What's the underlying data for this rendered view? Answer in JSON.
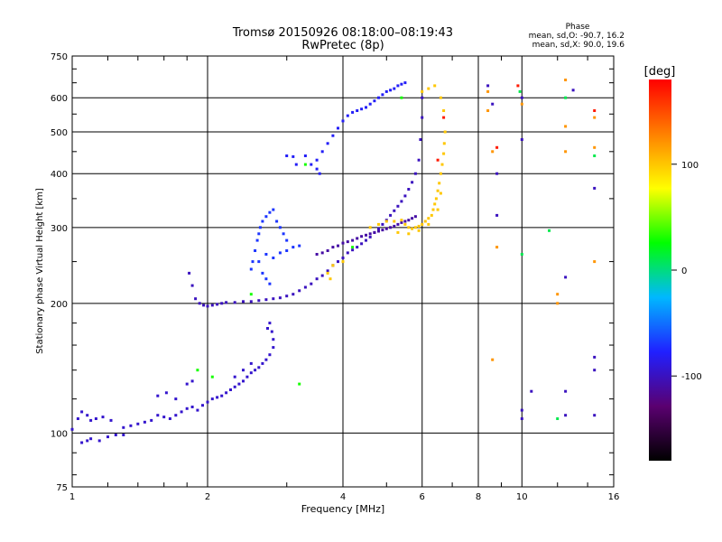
{
  "chart_data": {
    "type": "scatter",
    "title": "Tromsø 20150926 08:18:00–08:19:43",
    "subtitle": "RwPretec (8p)",
    "xlabel": "Frequency [MHz]",
    "ylabel": "Stationary phase Virtual Height [km]",
    "x_scale": "log",
    "y_scale": "log",
    "xlim": [
      1,
      16
    ],
    "ylim": [
      75,
      750
    ],
    "x_ticks": [
      1,
      2,
      4,
      6,
      8,
      10,
      16
    ],
    "y_ticks": [
      75,
      100,
      200,
      300,
      400,
      500,
      600,
      750
    ],
    "grid_x": [
      2,
      4,
      6,
      8,
      10
    ],
    "grid_y": [
      100,
      200,
      300,
      400,
      500,
      600
    ],
    "grid": true,
    "phase_header": "Phase",
    "phase_stats": [
      "mean, sd,O: -90.7, 16.2",
      "mean, sd,X:  90.0, 19.6"
    ],
    "colorbar": {
      "label": "[deg]",
      "ticks": [
        100,
        0,
        -100
      ],
      "range": [
        -180,
        180
      ],
      "colors": [
        "#000000",
        "#5a0070",
        "#2020ff",
        "#00b8ff",
        "#00ff00",
        "#ffff00",
        "#ff8000",
        "#ff0000"
      ]
    },
    "series": [
      {
        "phase": -95,
        "points": [
          [
            1.0,
            102
          ],
          [
            1.03,
            108
          ],
          [
            1.05,
            112
          ],
          [
            1.08,
            110
          ],
          [
            1.1,
            107
          ],
          [
            1.13,
            108
          ],
          [
            1.17,
            109
          ],
          [
            1.22,
            107
          ],
          [
            1.05,
            95
          ],
          [
            1.08,
            96
          ],
          [
            1.1,
            97
          ],
          [
            1.15,
            96
          ],
          [
            1.2,
            98
          ],
          [
            1.25,
            99
          ],
          [
            1.3,
            99
          ],
          [
            1.3,
            103
          ],
          [
            1.35,
            104
          ],
          [
            1.4,
            105
          ],
          [
            1.45,
            106
          ],
          [
            1.5,
            107
          ],
          [
            1.55,
            110
          ],
          [
            1.6,
            109
          ],
          [
            1.65,
            108
          ],
          [
            1.7,
            110
          ],
          [
            1.75,
            112
          ],
          [
            1.8,
            114
          ],
          [
            1.85,
            115
          ],
          [
            1.9,
            113
          ],
          [
            1.95,
            116
          ],
          [
            2.0,
            118
          ],
          [
            2.05,
            120
          ],
          [
            2.1,
            121
          ],
          [
            2.15,
            122
          ],
          [
            2.2,
            124
          ],
          [
            2.25,
            126
          ],
          [
            2.3,
            128
          ],
          [
            2.35,
            130
          ],
          [
            2.4,
            132
          ],
          [
            2.45,
            135
          ],
          [
            2.5,
            138
          ],
          [
            2.55,
            140
          ],
          [
            2.6,
            142
          ],
          [
            2.65,
            145
          ],
          [
            2.7,
            148
          ],
          [
            2.75,
            152
          ],
          [
            2.8,
            158
          ],
          [
            2.8,
            165
          ],
          [
            2.78,
            172
          ],
          [
            2.75,
            180
          ],
          [
            2.72,
            175
          ],
          [
            1.8,
            130
          ],
          [
            1.85,
            132
          ],
          [
            1.55,
            122
          ],
          [
            1.62,
            124
          ],
          [
            1.7,
            120
          ],
          [
            2.3,
            135
          ],
          [
            2.4,
            140
          ],
          [
            2.5,
            145
          ]
        ]
      },
      {
        "phase": -100,
        "points": [
          [
            1.82,
            235
          ],
          [
            1.85,
            220
          ],
          [
            1.88,
            205
          ],
          [
            1.92,
            200
          ],
          [
            1.96,
            198
          ],
          [
            2.0,
            197
          ],
          [
            2.05,
            198
          ],
          [
            2.1,
            199
          ],
          [
            2.15,
            200
          ],
          [
            2.2,
            201
          ],
          [
            2.3,
            201
          ],
          [
            2.4,
            202
          ],
          [
            2.5,
            202
          ],
          [
            2.6,
            203
          ],
          [
            2.7,
            204
          ],
          [
            2.8,
            205
          ],
          [
            2.9,
            206
          ],
          [
            3.0,
            208
          ],
          [
            3.1,
            210
          ],
          [
            3.2,
            214
          ],
          [
            3.3,
            218
          ],
          [
            3.4,
            222
          ],
          [
            3.5,
            228
          ],
          [
            3.6,
            232
          ],
          [
            3.7,
            238
          ],
          [
            3.8,
            245
          ],
          [
            3.9,
            250
          ],
          [
            4.0,
            255
          ],
          [
            4.1,
            262
          ],
          [
            4.2,
            266
          ],
          [
            4.3,
            270
          ],
          [
            4.4,
            275
          ],
          [
            4.5,
            280
          ],
          [
            4.6,
            285
          ],
          [
            4.7,
            292
          ],
          [
            4.8,
            298
          ],
          [
            4.9,
            305
          ],
          [
            5.0,
            312
          ],
          [
            5.1,
            320
          ],
          [
            5.2,
            328
          ],
          [
            5.3,
            336
          ],
          [
            5.4,
            345
          ],
          [
            5.5,
            355
          ],
          [
            5.6,
            368
          ],
          [
            5.7,
            382
          ],
          [
            5.8,
            400
          ],
          [
            5.9,
            430
          ],
          [
            5.95,
            480
          ],
          [
            6.0,
            540
          ],
          [
            6.0,
            600
          ]
        ]
      },
      {
        "phase": -70,
        "points": [
          [
            2.5,
            240
          ],
          [
            2.52,
            250
          ],
          [
            2.55,
            265
          ],
          [
            2.58,
            280
          ],
          [
            2.6,
            290
          ],
          [
            2.62,
            300
          ],
          [
            2.65,
            310
          ],
          [
            2.7,
            318
          ],
          [
            2.75,
            325
          ],
          [
            2.8,
            330
          ],
          [
            2.85,
            310
          ],
          [
            2.9,
            300
          ],
          [
            2.95,
            290
          ],
          [
            3.0,
            280
          ],
          [
            2.7,
            260
          ],
          [
            2.8,
            255
          ],
          [
            2.9,
            262
          ],
          [
            3.0,
            265
          ],
          [
            3.1,
            270
          ],
          [
            3.2,
            272
          ],
          [
            2.6,
            250
          ],
          [
            2.65,
            235
          ],
          [
            2.7,
            228
          ],
          [
            2.75,
            222
          ]
        ]
      },
      {
        "phase": -110,
        "points": [
          [
            3.5,
            260
          ],
          [
            3.6,
            262
          ],
          [
            3.7,
            265
          ],
          [
            3.8,
            270
          ],
          [
            3.9,
            272
          ],
          [
            4.0,
            276
          ],
          [
            4.1,
            278
          ],
          [
            4.2,
            280
          ],
          [
            4.3,
            283
          ],
          [
            4.4,
            286
          ],
          [
            4.5,
            288
          ],
          [
            4.6,
            290
          ],
          [
            4.7,
            292
          ],
          [
            4.8,
            294
          ],
          [
            4.9,
            296
          ],
          [
            5.0,
            298
          ],
          [
            5.1,
            300
          ],
          [
            5.2,
            302
          ],
          [
            5.3,
            305
          ],
          [
            5.4,
            308
          ],
          [
            5.5,
            310
          ],
          [
            5.6,
            312
          ],
          [
            5.7,
            315
          ],
          [
            5.8,
            318
          ]
        ]
      },
      {
        "phase": -80,
        "points": [
          [
            3.3,
            440
          ],
          [
            3.4,
            420
          ],
          [
            3.5,
            430
          ],
          [
            3.6,
            450
          ],
          [
            3.7,
            470
          ],
          [
            3.8,
            490
          ],
          [
            3.9,
            510
          ],
          [
            4.0,
            530
          ],
          [
            4.1,
            545
          ],
          [
            4.2,
            555
          ],
          [
            4.3,
            560
          ],
          [
            4.4,
            565
          ],
          [
            4.5,
            570
          ],
          [
            4.6,
            580
          ],
          [
            4.7,
            590
          ],
          [
            4.8,
            600
          ],
          [
            4.9,
            610
          ],
          [
            5.0,
            620
          ],
          [
            5.1,
            625
          ],
          [
            5.2,
            630
          ],
          [
            5.3,
            640
          ],
          [
            5.4,
            645
          ],
          [
            5.5,
            650
          ],
          [
            3.0,
            440
          ],
          [
            3.1,
            438
          ],
          [
            3.15,
            420
          ],
          [
            3.5,
            410
          ],
          [
            3.55,
            400
          ]
        ]
      },
      {
        "phase": 100,
        "points": [
          [
            4.6,
            300
          ],
          [
            4.8,
            305
          ],
          [
            5.0,
            310
          ],
          [
            5.2,
            310
          ],
          [
            5.4,
            312
          ],
          [
            5.5,
            305
          ],
          [
            5.6,
            300
          ],
          [
            5.7,
            298
          ],
          [
            5.8,
            300
          ],
          [
            5.9,
            302
          ],
          [
            6.0,
            305
          ],
          [
            6.1,
            310
          ],
          [
            6.2,
            315
          ],
          [
            6.3,
            320
          ],
          [
            6.35,
            330
          ],
          [
            6.4,
            340
          ],
          [
            6.45,
            350
          ],
          [
            6.5,
            365
          ],
          [
            6.55,
            380
          ],
          [
            6.6,
            400
          ],
          [
            6.65,
            420
          ],
          [
            6.7,
            445
          ],
          [
            6.72,
            470
          ],
          [
            6.75,
            500
          ],
          [
            5.3,
            292
          ],
          [
            5.6,
            290
          ],
          [
            5.9,
            295
          ],
          [
            6.2,
            305
          ],
          [
            6.5,
            330
          ],
          [
            6.6,
            360
          ],
          [
            4.0,
            250
          ],
          [
            3.8,
            245
          ],
          [
            3.7,
            235
          ],
          [
            3.75,
            228
          ],
          [
            6.0,
            620
          ],
          [
            6.2,
            630
          ],
          [
            6.4,
            640
          ],
          [
            6.7,
            560
          ],
          [
            6.6,
            600
          ]
        ]
      },
      {
        "phase": 30,
        "points": [
          [
            1.9,
            140
          ],
          [
            2.05,
            135
          ],
          [
            2.5,
            210
          ],
          [
            3.2,
            130
          ],
          [
            3.3,
            420
          ],
          [
            4.2,
            270
          ],
          [
            5.4,
            600
          ]
        ]
      },
      {
        "phase": -100,
        "points": [
          [
            8.4,
            640
          ],
          [
            8.6,
            580
          ],
          [
            8.8,
            400
          ],
          [
            8.8,
            320
          ],
          [
            10.0,
            113
          ],
          [
            10.0,
            108
          ],
          [
            10.5,
            125
          ],
          [
            12.5,
            110
          ],
          [
            12.5,
            125
          ],
          [
            12.5,
            230
          ],
          [
            13.0,
            625
          ],
          [
            14.5,
            370
          ],
          [
            14.5,
            140
          ],
          [
            14.5,
            110
          ],
          [
            14.5,
            150
          ],
          [
            10.0,
            600
          ],
          [
            10.0,
            480
          ]
        ]
      },
      {
        "phase": 120,
        "points": [
          [
            8.4,
            620
          ],
          [
            8.6,
            450
          ],
          [
            8.8,
            270
          ],
          [
            8.6,
            148
          ],
          [
            8.4,
            560
          ],
          [
            12.0,
            210
          ],
          [
            12.0,
            200
          ],
          [
            12.5,
            450
          ],
          [
            12.5,
            660
          ],
          [
            14.5,
            460
          ],
          [
            14.5,
            540
          ],
          [
            14.5,
            250
          ],
          [
            12.5,
            515
          ],
          [
            10.0,
            580
          ]
        ]
      },
      {
        "phase": 170,
        "points": [
          [
            9.8,
            640
          ],
          [
            6.7,
            540
          ],
          [
            6.5,
            430
          ],
          [
            14.5,
            560
          ],
          [
            8.8,
            460
          ]
        ]
      },
      {
        "phase": 10,
        "points": [
          [
            10.0,
            260
          ],
          [
            11.5,
            295
          ],
          [
            12.0,
            108
          ],
          [
            12.5,
            600
          ],
          [
            14.5,
            440
          ],
          [
            9.9,
            620
          ]
        ]
      }
    ]
  }
}
